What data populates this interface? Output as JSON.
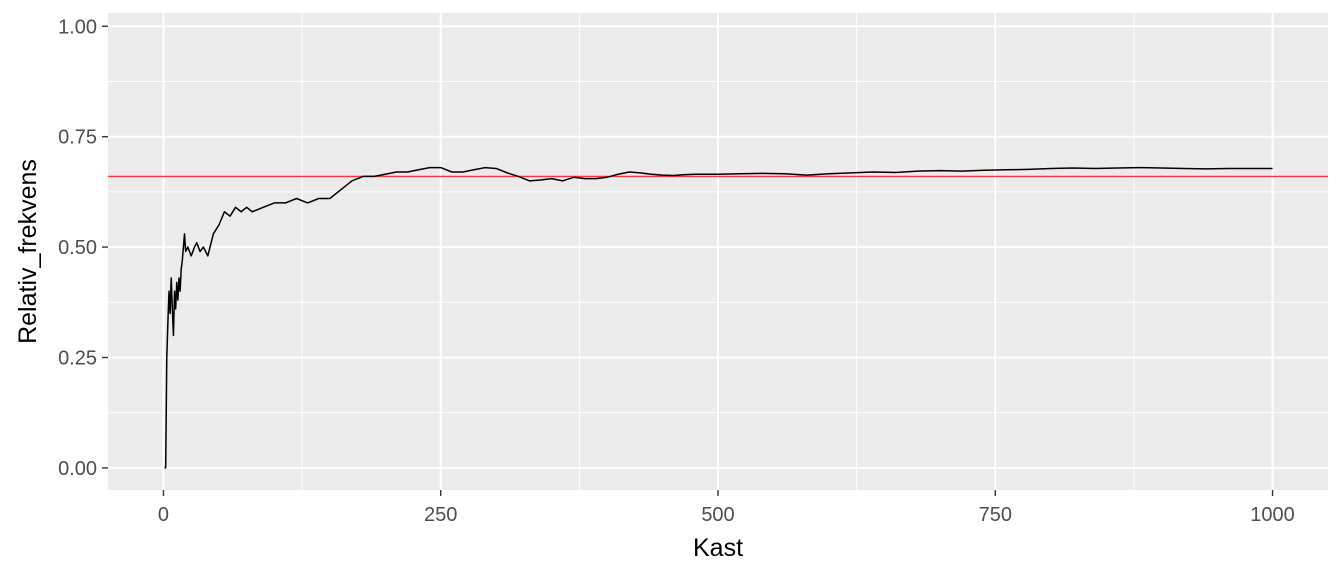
{
  "chart_data": {
    "type": "line",
    "title": "",
    "xlabel": "Kast",
    "ylabel": "Relativ_frekvens",
    "xlim": [
      -50,
      1050
    ],
    "ylim": [
      -0.05,
      1.03
    ],
    "x_ticks": [
      0,
      250,
      500,
      750,
      1000
    ],
    "x_tick_labels": [
      "0",
      "250",
      "500",
      "750",
      "1000"
    ],
    "y_ticks": [
      0.0,
      0.25,
      0.5,
      0.75,
      1.0
    ],
    "y_tick_labels": [
      "0.00",
      "0.25",
      "0.50",
      "0.75",
      "1.00"
    ],
    "grid": true,
    "reference_line": {
      "y": 0.66,
      "color": "#ff3333"
    },
    "series": [
      {
        "name": "Relativ_frekvens",
        "color": "#000000",
        "x": [
          1,
          2,
          3,
          4,
          5,
          6,
          7,
          8,
          9,
          10,
          11,
          12,
          13,
          14,
          15,
          16,
          17,
          18,
          19,
          20,
          22,
          25,
          28,
          30,
          33,
          36,
          40,
          45,
          50,
          55,
          60,
          65,
          70,
          75,
          80,
          90,
          100,
          110,
          120,
          130,
          140,
          150,
          160,
          170,
          180,
          190,
          200,
          210,
          220,
          230,
          240,
          250,
          260,
          270,
          280,
          290,
          300,
          310,
          320,
          330,
          340,
          350,
          360,
          370,
          380,
          390,
          400,
          410,
          420,
          430,
          440,
          450,
          460,
          470,
          480,
          500,
          520,
          540,
          560,
          580,
          600,
          620,
          640,
          660,
          680,
          700,
          720,
          740,
          760,
          780,
          800,
          820,
          840,
          860,
          880,
          900,
          920,
          940,
          960,
          980,
          1000
        ],
        "values": [
          0.0,
          0.0,
          0.25,
          0.33,
          0.4,
          0.35,
          0.43,
          0.36,
          0.3,
          0.4,
          0.36,
          0.42,
          0.38,
          0.43,
          0.4,
          0.45,
          0.47,
          0.5,
          0.53,
          0.49,
          0.5,
          0.48,
          0.5,
          0.51,
          0.49,
          0.5,
          0.48,
          0.53,
          0.55,
          0.58,
          0.57,
          0.59,
          0.58,
          0.59,
          0.58,
          0.59,
          0.6,
          0.6,
          0.61,
          0.6,
          0.61,
          0.61,
          0.63,
          0.65,
          0.66,
          0.66,
          0.665,
          0.67,
          0.67,
          0.675,
          0.68,
          0.68,
          0.67,
          0.67,
          0.675,
          0.68,
          0.678,
          0.668,
          0.66,
          0.65,
          0.652,
          0.655,
          0.65,
          0.658,
          0.655,
          0.655,
          0.658,
          0.665,
          0.67,
          0.668,
          0.665,
          0.663,
          0.662,
          0.664,
          0.665,
          0.665,
          0.666,
          0.667,
          0.666,
          0.663,
          0.666,
          0.668,
          0.67,
          0.669,
          0.672,
          0.673,
          0.672,
          0.674,
          0.675,
          0.676,
          0.678,
          0.679,
          0.678,
          0.679,
          0.68,
          0.679,
          0.678,
          0.677,
          0.678,
          0.678,
          0.678
        ]
      }
    ]
  }
}
